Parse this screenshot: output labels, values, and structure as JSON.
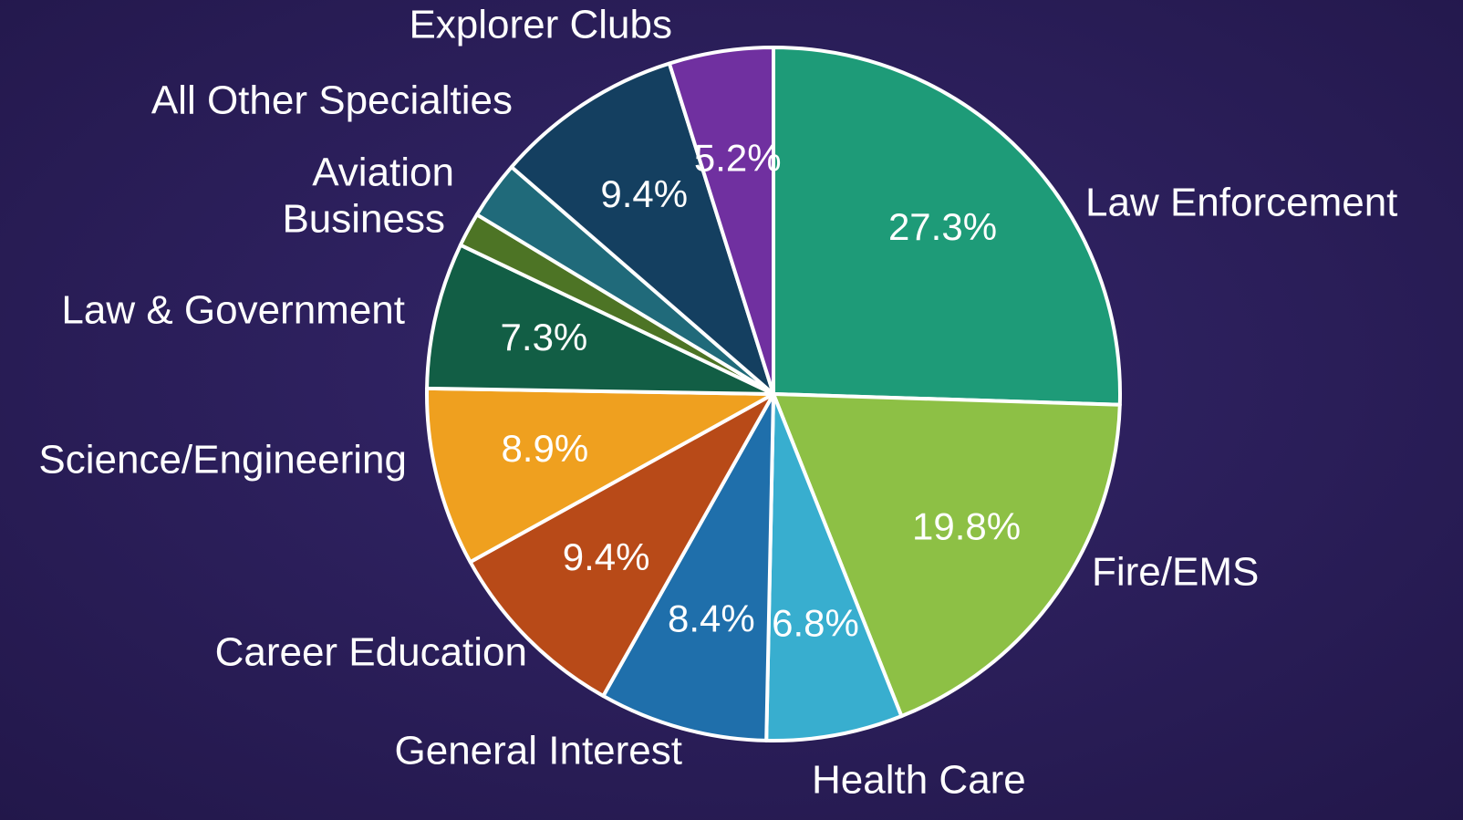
{
  "chart_data": {
    "type": "pie",
    "categories": [
      "Law Enforcement",
      "Fire/EMS",
      "Health Care",
      "General Interest",
      "Career Education",
      "Science/Engineering",
      "Law & Government",
      "Business",
      "Aviation",
      "All Other Specialties",
      "Explorer Clubs"
    ],
    "values": [
      27.3,
      19.8,
      6.8,
      8.4,
      9.4,
      8.9,
      7.3,
      1.7,
      2.9,
      9.4,
      5.2
    ],
    "value_labels": [
      "27.3%",
      "19.8%",
      "6.8%",
      "8.4%",
      "9.4%",
      "8.9%",
      "7.3%",
      null,
      null,
      "9.4%",
      "5.2%"
    ],
    "colors": [
      "#1e9b78",
      "#8dc045",
      "#38aecf",
      "#1f6fab",
      "#b84a18",
      "#efa01f",
      "#125e45",
      "#4d7425",
      "#206a7a",
      "#143f60",
      "#7030a0"
    ]
  }
}
